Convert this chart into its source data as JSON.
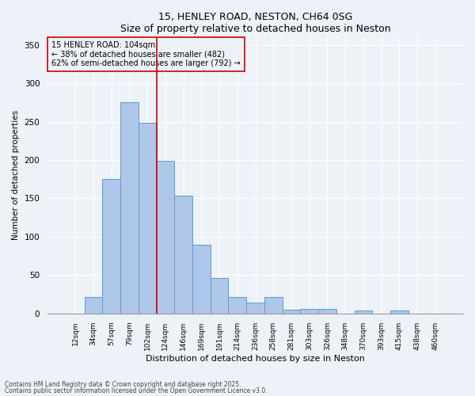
{
  "title": "15, HENLEY ROAD, NESTON, CH64 0SG",
  "subtitle": "Size of property relative to detached houses in Neston",
  "xlabel": "Distribution of detached houses by size in Neston",
  "ylabel": "Number of detached properties",
  "categories": [
    "12sqm",
    "34sqm",
    "57sqm",
    "79sqm",
    "102sqm",
    "124sqm",
    "146sqm",
    "169sqm",
    "191sqm",
    "214sqm",
    "236sqm",
    "258sqm",
    "281sqm",
    "303sqm",
    "326sqm",
    "348sqm",
    "370sqm",
    "393sqm",
    "415sqm",
    "438sqm",
    "460sqm"
  ],
  "values": [
    0,
    22,
    175,
    275,
    248,
    199,
    154,
    90,
    46,
    22,
    14,
    21,
    5,
    6,
    6,
    0,
    4,
    0,
    4,
    0,
    0
  ],
  "bar_color": "#aec6e8",
  "bar_edge_color": "#5b9bd5",
  "vline_x": 4.5,
  "vline_color": "#cc0000",
  "annotation_text": "15 HENLEY ROAD: 104sqm\n← 38% of detached houses are smaller (482)\n62% of semi-detached houses are larger (792) →",
  "annotation_box_color": "#cc0000",
  "ylim": [
    0,
    360
  ],
  "yticks": [
    0,
    50,
    100,
    150,
    200,
    250,
    300,
    350
  ],
  "background_color": "#edf2f9",
  "footer1": "Contains HM Land Registry data © Crown copyright and database right 2025.",
  "footer2": "Contains public sector information licensed under the Open Government Licence v3.0."
}
